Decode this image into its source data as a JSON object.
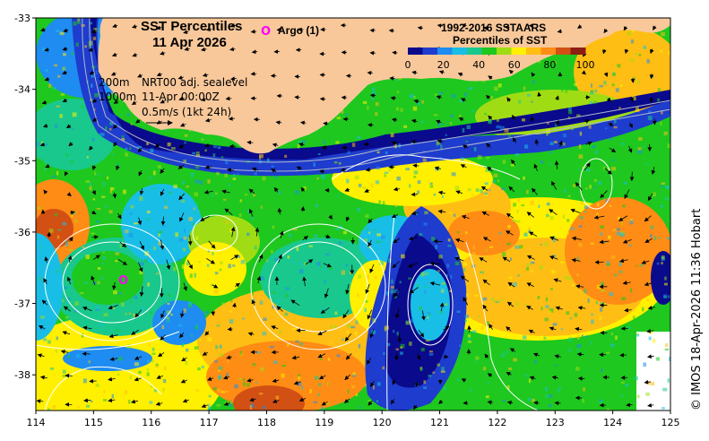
{
  "title": {
    "line1": "SST Percentiles",
    "line2": "11 Apr 2026"
  },
  "argo": {
    "symbol": "O",
    "label": "Argo (1)",
    "color": "#ff00ff"
  },
  "colorbar": {
    "title_line1": "1992-2016 SSTAARS",
    "title_line2": "Percentiles of SST",
    "ticks": [
      "0",
      "20",
      "40",
      "60",
      "80",
      "100"
    ],
    "colors": [
      "#0a0a8c",
      "#1e3ccd",
      "#1e8cf0",
      "#19bee6",
      "#19c88c",
      "#1ec81e",
      "#a0dc14",
      "#fff000",
      "#ffbe14",
      "#ff8c14",
      "#d25014",
      "#8c1e14"
    ]
  },
  "legend": {
    "contour_200": "200m",
    "contour_1000": "1000m",
    "product": "NRT00 adj. sealevel",
    "time": "11-Apr 00:00Z",
    "scale": "0.5m/s (1kt 24h)"
  },
  "axes": {
    "lon_ticks": [
      "114",
      "115",
      "116",
      "117",
      "118",
      "119",
      "120",
      "121",
      "122",
      "123",
      "124",
      "125"
    ],
    "lat_ticks": [
      "-33",
      "-34",
      "-35",
      "-36",
      "-37",
      "-38"
    ],
    "lon_range": [
      114,
      125
    ],
    "lat_range": [
      -38.5,
      -33
    ]
  },
  "credit": "© IMOS 18-Apr-2026 11:36 Hobart",
  "colors": {
    "land": "#f8c89a",
    "white": "#ffffff"
  }
}
